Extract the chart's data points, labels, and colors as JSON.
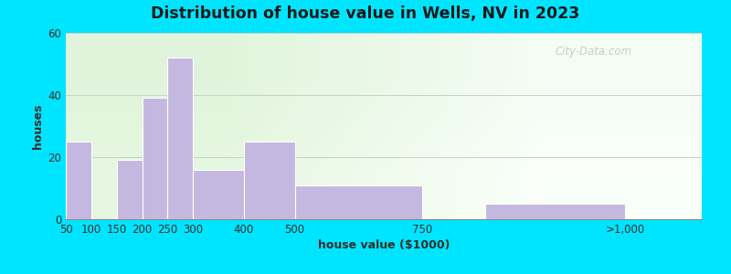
{
  "title": "Distribution of house value in Wells, NV in 2023",
  "xlabel": "house value ($1000)",
  "ylabel": "houses",
  "bar_color": "#c5b8e0",
  "bar_edgecolor": "#ffffff",
  "background_outer": "#00e5ff",
  "ylim": [
    0,
    60
  ],
  "yticks": [
    0,
    20,
    40,
    60
  ],
  "watermark": "City-Data.com",
  "bin_lefts": [
    50,
    100,
    150,
    200,
    250,
    300,
    400,
    500,
    875
  ],
  "bin_widths": [
    50,
    50,
    50,
    50,
    50,
    100,
    100,
    250,
    275
  ],
  "values": [
    25,
    0,
    19,
    39,
    52,
    16,
    25,
    11,
    5
  ],
  "xtick_positions": [
    50,
    100,
    150,
    200,
    250,
    300,
    400,
    500,
    750,
    1150
  ],
  "xtick_labels": [
    "50",
    "100",
    "150",
    "200",
    "250",
    "300",
    "400",
    "500",
    "750",
    ">1,000"
  ],
  "xlim": [
    50,
    1300
  ],
  "bg_topleft": [
    0.88,
    0.96,
    0.86
  ],
  "bg_topright": [
    0.96,
    0.99,
    0.96
  ],
  "bg_botleft": [
    0.9,
    0.97,
    0.88
  ],
  "bg_botright": [
    0.98,
    1.0,
    0.98
  ]
}
